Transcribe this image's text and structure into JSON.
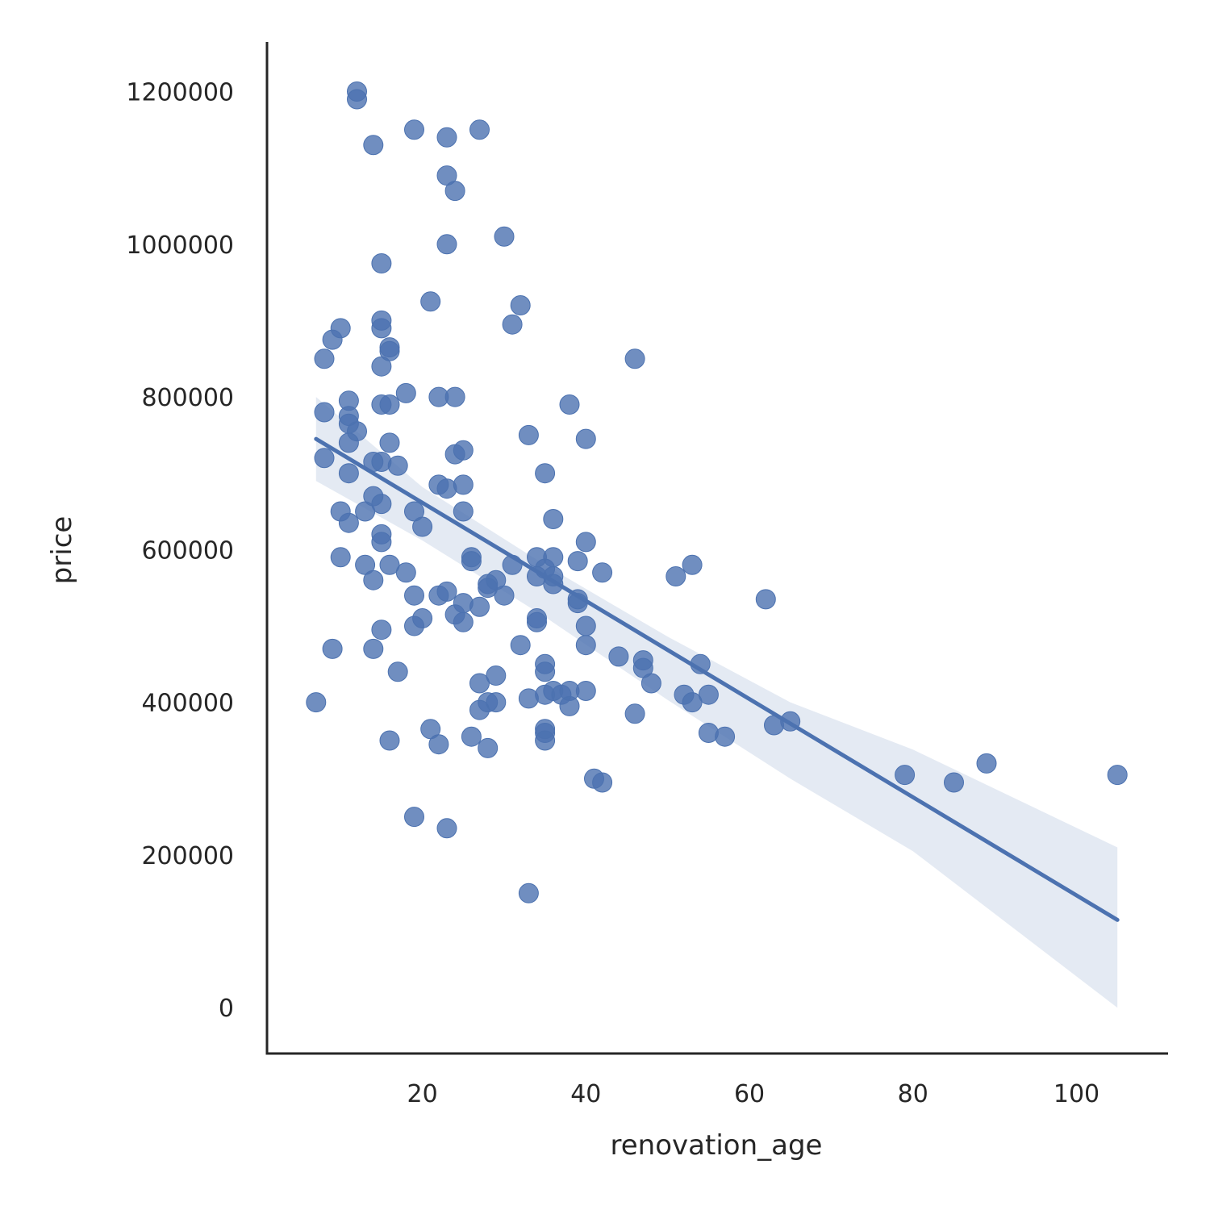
{
  "chart_data": {
    "type": "scatter",
    "title": "",
    "xlabel": "renovation_age",
    "ylabel": "price",
    "xlim": [
      1,
      111
    ],
    "ylim": [
      -60000,
      1265000
    ],
    "xticks": [
      20,
      40,
      60,
      80,
      100
    ],
    "yticks": [
      0,
      200000,
      400000,
      600000,
      800000,
      1000000,
      1200000
    ],
    "xtick_labels": [
      "20",
      "40",
      "60",
      "80",
      "100"
    ],
    "ytick_labels": [
      "0",
      "200000",
      "400000",
      "600000",
      "800000",
      "1000000",
      "1200000"
    ],
    "grid": false,
    "point_color": "#4c72b0",
    "points": [
      [
        7,
        400000
      ],
      [
        8,
        720000
      ],
      [
        8,
        780000
      ],
      [
        8,
        850000
      ],
      [
        9,
        470000
      ],
      [
        9,
        875000
      ],
      [
        10,
        890000
      ],
      [
        10,
        650000
      ],
      [
        10,
        590000
      ],
      [
        11,
        795000
      ],
      [
        11,
        775000
      ],
      [
        11,
        765000
      ],
      [
        11,
        740000
      ],
      [
        11,
        700000
      ],
      [
        11,
        635000
      ],
      [
        12,
        1200000
      ],
      [
        12,
        1190000
      ],
      [
        12,
        755000
      ],
      [
        13,
        650000
      ],
      [
        13,
        580000
      ],
      [
        14,
        1130000
      ],
      [
        14,
        715000
      ],
      [
        14,
        670000
      ],
      [
        14,
        560000
      ],
      [
        14,
        470000
      ],
      [
        15,
        975000
      ],
      [
        15,
        900000
      ],
      [
        15,
        890000
      ],
      [
        15,
        840000
      ],
      [
        15,
        790000
      ],
      [
        15,
        715000
      ],
      [
        15,
        660000
      ],
      [
        15,
        620000
      ],
      [
        15,
        610000
      ],
      [
        15,
        495000
      ],
      [
        16,
        865000
      ],
      [
        16,
        860000
      ],
      [
        16,
        790000
      ],
      [
        16,
        740000
      ],
      [
        16,
        580000
      ],
      [
        16,
        350000
      ],
      [
        17,
        710000
      ],
      [
        17,
        440000
      ],
      [
        18,
        805000
      ],
      [
        18,
        570000
      ],
      [
        19,
        1150000
      ],
      [
        19,
        650000
      ],
      [
        19,
        540000
      ],
      [
        19,
        500000
      ],
      [
        19,
        250000
      ],
      [
        20,
        630000
      ],
      [
        20,
        510000
      ],
      [
        21,
        925000
      ],
      [
        21,
        365000
      ],
      [
        22,
        800000
      ],
      [
        22,
        685000
      ],
      [
        22,
        540000
      ],
      [
        22,
        345000
      ],
      [
        23,
        1140000
      ],
      [
        23,
        1090000
      ],
      [
        23,
        1000000
      ],
      [
        23,
        680000
      ],
      [
        23,
        545000
      ],
      [
        23,
        235000
      ],
      [
        24,
        1070000
      ],
      [
        24,
        800000
      ],
      [
        24,
        725000
      ],
      [
        24,
        515000
      ],
      [
        25,
        730000
      ],
      [
        25,
        685000
      ],
      [
        25,
        650000
      ],
      [
        25,
        530000
      ],
      [
        25,
        505000
      ],
      [
        26,
        590000
      ],
      [
        26,
        585000
      ],
      [
        26,
        355000
      ],
      [
        27,
        525000
      ],
      [
        27,
        1150000
      ],
      [
        27,
        425000
      ],
      [
        27,
        390000
      ],
      [
        28,
        555000
      ],
      [
        28,
        550000
      ],
      [
        28,
        400000
      ],
      [
        28,
        340000
      ],
      [
        29,
        560000
      ],
      [
        29,
        435000
      ],
      [
        29,
        400000
      ],
      [
        30,
        1010000
      ],
      [
        30,
        540000
      ],
      [
        31,
        895000
      ],
      [
        31,
        580000
      ],
      [
        32,
        920000
      ],
      [
        32,
        475000
      ],
      [
        33,
        750000
      ],
      [
        33,
        405000
      ],
      [
        33,
        150000
      ],
      [
        34,
        590000
      ],
      [
        34,
        565000
      ],
      [
        34,
        510000
      ],
      [
        34,
        505000
      ],
      [
        35,
        700000
      ],
      [
        35,
        575000
      ],
      [
        35,
        450000
      ],
      [
        35,
        440000
      ],
      [
        35,
        410000
      ],
      [
        35,
        365000
      ],
      [
        35,
        360000
      ],
      [
        35,
        350000
      ],
      [
        36,
        640000
      ],
      [
        36,
        590000
      ],
      [
        36,
        565000
      ],
      [
        36,
        555000
      ],
      [
        36,
        415000
      ],
      [
        37,
        410000
      ],
      [
        38,
        790000
      ],
      [
        38,
        415000
      ],
      [
        38,
        395000
      ],
      [
        39,
        585000
      ],
      [
        39,
        535000
      ],
      [
        39,
        530000
      ],
      [
        40,
        745000
      ],
      [
        40,
        610000
      ],
      [
        40,
        500000
      ],
      [
        40,
        475000
      ],
      [
        40,
        415000
      ],
      [
        41,
        300000
      ],
      [
        42,
        570000
      ],
      [
        42,
        295000
      ],
      [
        44,
        460000
      ],
      [
        46,
        850000
      ],
      [
        46,
        385000
      ],
      [
        47,
        455000
      ],
      [
        47,
        445000
      ],
      [
        48,
        425000
      ],
      [
        51,
        565000
      ],
      [
        52,
        410000
      ],
      [
        53,
        580000
      ],
      [
        53,
        400000
      ],
      [
        54,
        450000
      ],
      [
        55,
        410000
      ],
      [
        55,
        360000
      ],
      [
        57,
        355000
      ],
      [
        62,
        535000
      ],
      [
        63,
        370000
      ],
      [
        65,
        375000
      ],
      [
        79,
        305000
      ],
      [
        85,
        295000
      ],
      [
        89,
        320000
      ],
      [
        105,
        305000
      ]
    ],
    "regression": {
      "x_start": 7,
      "y_start": 745000,
      "x_end": 105,
      "y_end": 115000
    },
    "confidence_band": {
      "x": [
        7,
        20,
        35,
        50,
        65,
        80,
        105
      ],
      "lower": [
        690000,
        612000,
        512000,
        403000,
        300000,
        205000,
        0
      ],
      "upper": [
        800000,
        682000,
        580000,
        486000,
        400000,
        338000,
        210000
      ]
    }
  }
}
